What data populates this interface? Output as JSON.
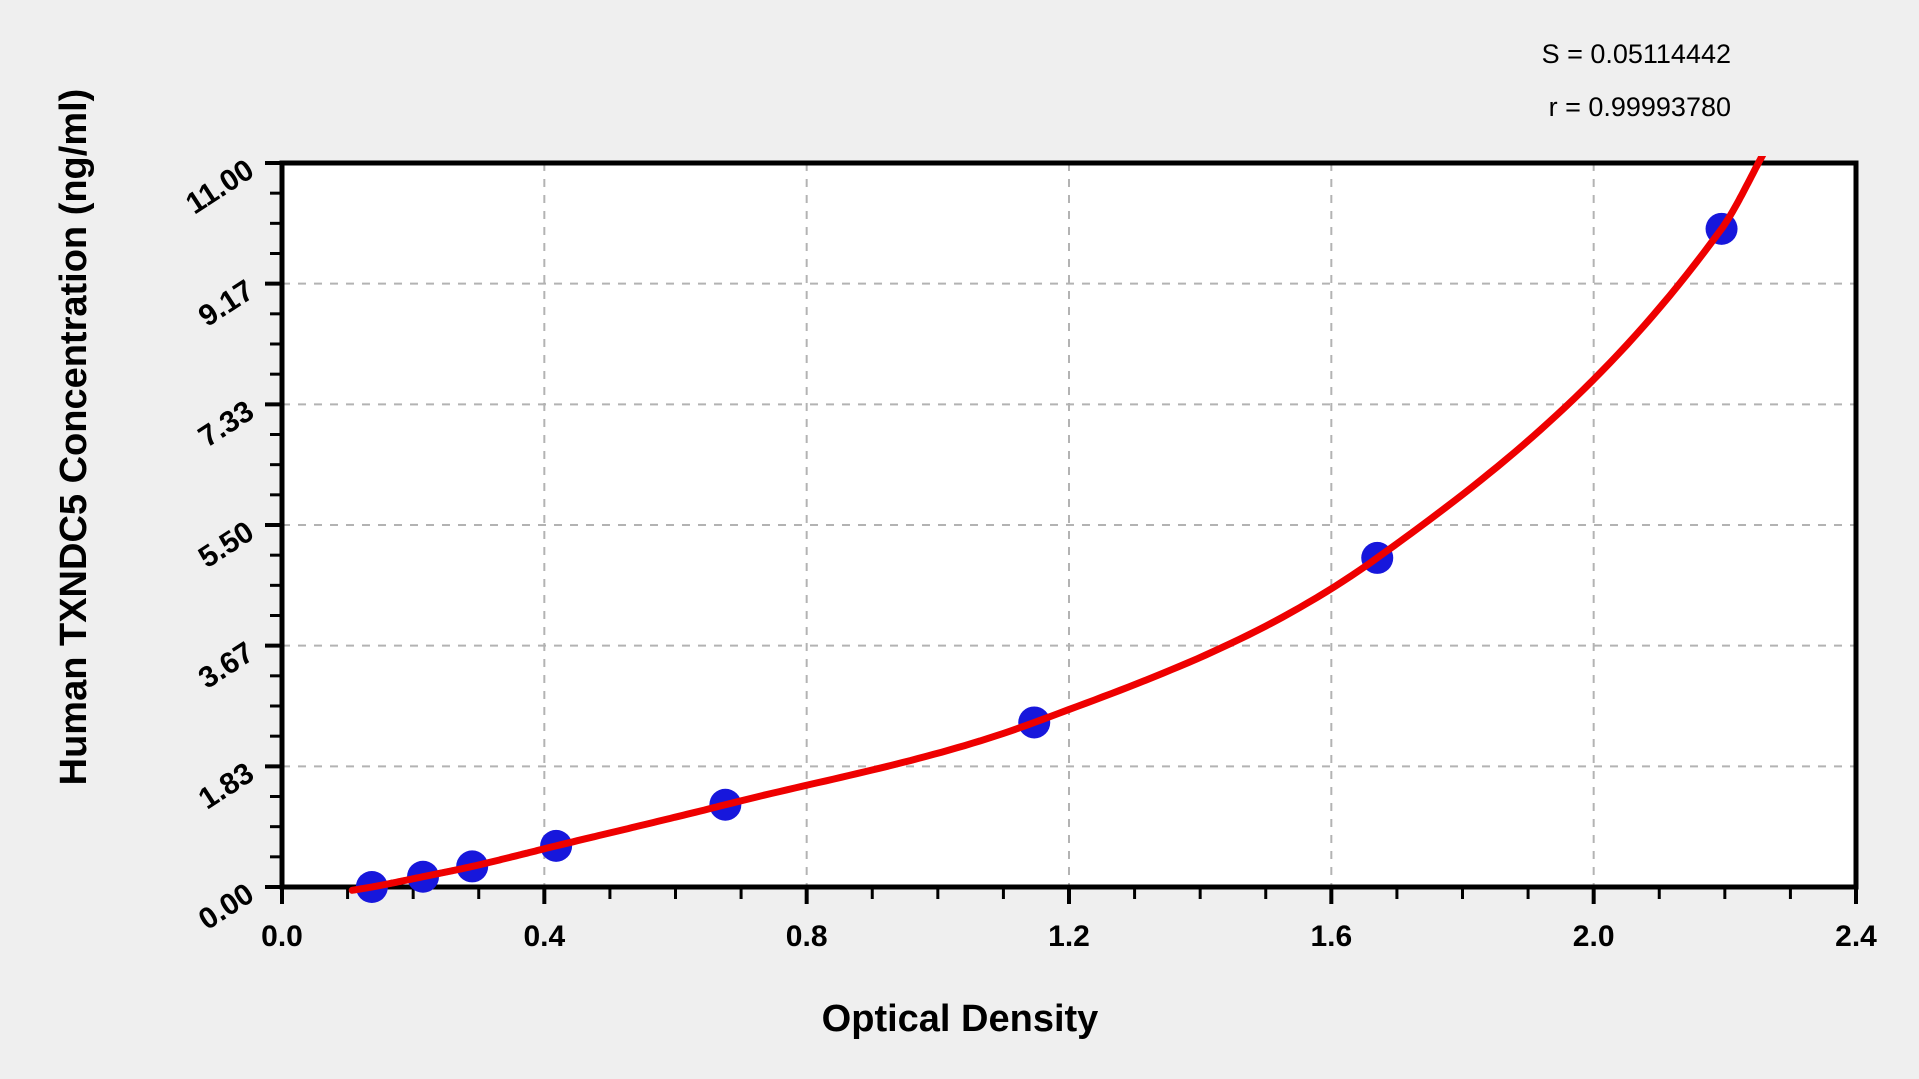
{
  "chart_data": {
    "type": "scatter",
    "xlabel": "Optical Density",
    "ylabel": "Human TXNDC5 Concentration (ng/ml)",
    "xlim": [
      0,
      2.4
    ],
    "ylim": [
      0,
      11
    ],
    "x_tick_labels": [
      "0.0",
      "0.4",
      "0.8",
      "1.2",
      "1.6",
      "2.0",
      "2.4"
    ],
    "y_tick_labels": [
      "0.00",
      "1.83",
      "3.67",
      "5.50",
      "7.33",
      "9.17",
      "11.00"
    ],
    "x_minor_step": 0.1,
    "y_minor_divisions": 4,
    "grid": "dashed gray at major ticks",
    "legend": "none",
    "stats": {
      "s_label": "S = 0.05114442",
      "r_label": "r = 0.99993780"
    },
    "series": [
      {
        "name": "standard-points",
        "type": "scatter",
        "color": "#1717dc",
        "marker_radius": 16,
        "points_od_conc": [
          [
            0.137,
            0.0
          ],
          [
            0.215,
            0.156
          ],
          [
            0.29,
            0.3125
          ],
          [
            0.418,
            0.625
          ],
          [
            0.676,
            1.25
          ],
          [
            1.147,
            2.5
          ],
          [
            1.67,
            5.0
          ],
          [
            2.195,
            10.0
          ]
        ]
      },
      {
        "name": "fitted-curve",
        "type": "line",
        "color": "#ee0000",
        "stroke_width": 7,
        "curve_start": [
          0.107,
          -0.05
        ],
        "curve_end": [
          2.262,
          11.2
        ]
      }
    ],
    "plot_background": "#ffffff",
    "page_background": "#efefef",
    "gridline_color": "#b3b3b3",
    "axis_color": "#000000"
  }
}
